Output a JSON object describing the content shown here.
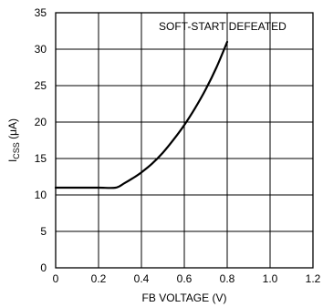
{
  "chart_data": {
    "type": "line",
    "title": "",
    "xlabel": "FB VOLTAGE (V)",
    "ylabel": {
      "main": "I",
      "sub": "CSS",
      "unit": " (μA)"
    },
    "xlim": [
      0,
      1.2
    ],
    "ylim": [
      0,
      35
    ],
    "xticks": [
      0,
      0.2,
      0.4,
      0.6,
      0.8,
      1.0,
      1.2
    ],
    "xtick_labels": [
      "0",
      "0.2",
      "0.4",
      "0.6",
      "0.8",
      "1.0",
      "1.2"
    ],
    "yticks": [
      0,
      5,
      10,
      15,
      20,
      25,
      30,
      35
    ],
    "ytick_labels": [
      "0",
      "5",
      "10",
      "15",
      "20",
      "25",
      "30",
      "35"
    ],
    "grid": true,
    "annotation": "SOFT-START DEFEATED",
    "series": [
      {
        "x": [
          0,
          0.1,
          0.2,
          0.28,
          0.32,
          0.36,
          0.4,
          0.45,
          0.5,
          0.55,
          0.6,
          0.65,
          0.7,
          0.75,
          0.8
        ],
        "y": [
          11,
          11,
          11,
          11,
          11.6,
          12.3,
          13.1,
          14.3,
          15.8,
          17.6,
          19.6,
          21.9,
          24.5,
          27.5,
          31
        ]
      }
    ]
  }
}
